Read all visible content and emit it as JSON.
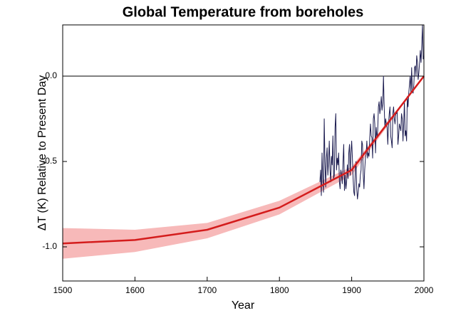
{
  "chart_data": {
    "type": "line",
    "title": "Global Temperature from boreholes",
    "x_label": "Year",
    "y_label": "ΔT (K) Relative to Present Day",
    "xlim": [
      1500,
      2000
    ],
    "ylim": [
      -1.2,
      0.3
    ],
    "xticks": [
      1500,
      1600,
      1700,
      1800,
      1900,
      2000
    ],
    "yticks": [
      {
        "value": 0,
        "label": "0.0"
      },
      {
        "value": -0.5,
        "label": "-0.5"
      },
      {
        "value": -1,
        "label": "-1.0"
      }
    ],
    "hline": 0,
    "band": {
      "color": "#f7b9b9",
      "x": [
        1500,
        1600,
        1700,
        1800,
        1900,
        2000
      ],
      "upper": [
        -0.89,
        -0.9,
        -0.86,
        -0.73,
        -0.53,
        0
      ],
      "lower": [
        -1.07,
        -1.03,
        -0.95,
        -0.81,
        -0.58,
        0
      ]
    },
    "series": [
      {
        "color": "#1c1c50",
        "x": [
          1856,
          1857,
          1858,
          1859,
          1860,
          1861,
          1862,
          1863,
          1864,
          1865,
          1866,
          1867,
          1868,
          1869,
          1870,
          1871,
          1872,
          1873,
          1874,
          1875,
          1876,
          1877,
          1878,
          1879,
          1880,
          1881,
          1882,
          1883,
          1884,
          1885,
          1886,
          1887,
          1888,
          1889,
          1890,
          1891,
          1892,
          1893,
          1894,
          1895,
          1896,
          1897,
          1898,
          1899,
          1900,
          1901,
          1902,
          1903,
          1904,
          1905,
          1906,
          1907,
          1908,
          1909,
          1910,
          1911,
          1912,
          1913,
          1914,
          1915,
          1916,
          1917,
          1918,
          1919,
          1920,
          1921,
          1922,
          1923,
          1924,
          1925,
          1926,
          1927,
          1928,
          1929,
          1930,
          1931,
          1932,
          1933,
          1934,
          1935,
          1936,
          1937,
          1938,
          1939,
          1940,
          1941,
          1942,
          1943,
          1944,
          1945,
          1946,
          1947,
          1948,
          1949,
          1950,
          1951,
          1952,
          1953,
          1954,
          1955,
          1956,
          1957,
          1958,
          1959,
          1960,
          1961,
          1962,
          1963,
          1964,
          1965,
          1966,
          1967,
          1968,
          1969,
          1970,
          1971,
          1972,
          1973,
          1974,
          1975,
          1976,
          1977,
          1978,
          1979,
          1980,
          1981,
          1982,
          1983,
          1984,
          1985,
          1986,
          1987,
          1988,
          1989,
          1990,
          1991,
          1992,
          1993,
          1994,
          1995,
          1996,
          1997,
          1998,
          1999,
          2000
        ],
        "values": [
          -0.62,
          -0.55,
          -0.7,
          -0.45,
          -0.6,
          -0.68,
          -0.25,
          -0.5,
          -0.65,
          -0.48,
          -0.42,
          -0.58,
          -0.5,
          -0.38,
          -0.55,
          -0.62,
          -0.47,
          -0.52,
          -0.35,
          -0.6,
          -0.58,
          -0.3,
          -0.22,
          -0.55,
          -0.48,
          -0.52,
          -0.45,
          -0.62,
          -0.66,
          -0.55,
          -0.58,
          -0.63,
          -0.5,
          -0.4,
          -0.67,
          -0.58,
          -0.66,
          -0.62,
          -0.52,
          -0.6,
          -0.45,
          -0.4,
          -0.58,
          -0.45,
          -0.38,
          -0.48,
          -0.6,
          -0.68,
          -0.7,
          -0.55,
          -0.5,
          -0.66,
          -0.72,
          -0.68,
          -0.63,
          -0.65,
          -0.58,
          -0.55,
          -0.38,
          -0.4,
          -0.58,
          -0.66,
          -0.55,
          -0.48,
          -0.46,
          -0.38,
          -0.48,
          -0.45,
          -0.47,
          -0.36,
          -0.28,
          -0.35,
          -0.36,
          -0.48,
          -0.25,
          -0.22,
          -0.28,
          -0.45,
          -0.3,
          -0.36,
          -0.32,
          -0.18,
          -0.15,
          -0.22,
          -0.18,
          -0.12,
          -0.2,
          -0.16,
          0,
          -0.18,
          -0.3,
          -0.25,
          -0.28,
          -0.3,
          -0.4,
          -0.28,
          -0.22,
          -0.18,
          -0.35,
          -0.38,
          -0.42,
          -0.22,
          -0.18,
          -0.25,
          -0.28,
          -0.22,
          -0.22,
          -0.2,
          -0.4,
          -0.35,
          -0.28,
          -0.3,
          -0.32,
          -0.22,
          -0.25,
          -0.38,
          -0.28,
          -0.15,
          -0.35,
          -0.32,
          -0.38,
          -0.12,
          -0.18,
          -0.1,
          -0.05,
          0,
          -0.1,
          0.05,
          -0.08,
          -0.1,
          -0.05,
          0.05,
          0.06,
          0,
          0.12,
          0.08,
          -0.02,
          0.02,
          0.08,
          0.15,
          0.08,
          0.18,
          0.3,
          0.1,
          0.12
        ]
      },
      {
        "color": "#d41c1c",
        "x": [
          1500,
          1600,
          1700,
          1800,
          1900,
          2000
        ],
        "values": [
          -0.98,
          -0.96,
          -0.9,
          -0.77,
          -0.55,
          0
        ]
      }
    ]
  }
}
